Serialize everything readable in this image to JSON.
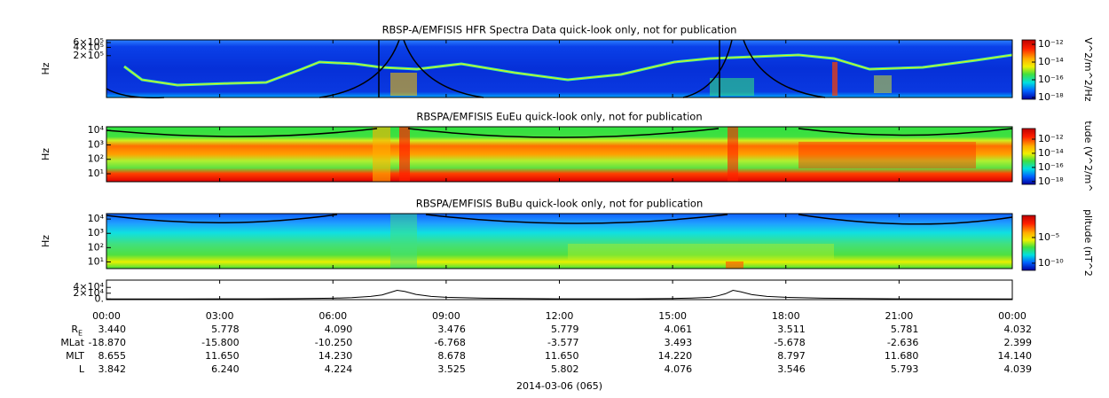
{
  "chart_data": [
    {
      "type": "spectrogram",
      "title": "RBSP-A/EMFISIS  HFR Spectra Data quick-look only, not for publication",
      "y_label": "Hz",
      "log_y": true,
      "ylim": [
        6000,
        750000
      ],
      "yticks": [
        {
          "value": 600000,
          "label": "6×10⁵"
        },
        {
          "value": 400000,
          "label": "4×10⁵"
        },
        {
          "value": 200000,
          "label": "2×10⁵"
        }
      ],
      "colorbar_label": "V^2/m^2/Hz",
      "clim": [
        6.3e-19,
        3.2e-12
      ],
      "colorbar_ticks": [
        {
          "value": 1e-12,
          "label": "10⁻¹²"
        },
        {
          "value": 1e-14,
          "label": "10⁻¹⁴"
        },
        {
          "value": 1e-16,
          "label": "10⁻¹⁶"
        },
        {
          "value": 1e-18,
          "label": "10⁻¹⁸"
        }
      ]
    },
    {
      "type": "spectrogram",
      "title": "RBSPA/EMFISIS  EuEu quick-look only, not for publication",
      "y_label": "Hz",
      "log_y": true,
      "ylim": [
        2.8,
        18000
      ],
      "yticks": [
        {
          "value": 10000,
          "label": "10⁴"
        },
        {
          "value": 1000,
          "label": "10³"
        },
        {
          "value": 100,
          "label": "10²"
        },
        {
          "value": 10,
          "label": "10¹"
        }
      ],
      "colorbar_label": "tude (V^2/m^",
      "clim": [
        4e-19,
        3.2e-11
      ],
      "colorbar_ticks": [
        {
          "value": 1e-12,
          "label": "10⁻¹²"
        },
        {
          "value": 1e-14,
          "label": "10⁻¹⁴"
        },
        {
          "value": 1e-16,
          "label": "10⁻¹⁶"
        },
        {
          "value": 1e-18,
          "label": "10⁻¹⁸"
        }
      ]
    },
    {
      "type": "spectrogram",
      "title": "RBSPA/EMFISIS  BuBu quick-look only, not for publication",
      "y_label": "Hz",
      "log_y": true,
      "ylim": [
        3.4,
        24000
      ],
      "yticks": [
        {
          "value": 10000,
          "label": "10⁴"
        },
        {
          "value": 1000,
          "label": "10³"
        },
        {
          "value": 100,
          "label": "10²"
        },
        {
          "value": 10,
          "label": "10¹"
        }
      ],
      "colorbar_label": "plitude (nT^2",
      "clim": [
        4e-12,
        0.2
      ],
      "colorbar_ticks": [
        {
          "value": 1e-05,
          "label": "10⁻⁵"
        },
        {
          "value": 1e-10,
          "label": "10⁻¹⁰"
        }
      ]
    },
    {
      "type": "line",
      "color": "#000000",
      "xlim": [
        0,
        24
      ],
      "xticks": [
        {
          "value": 0,
          "label": "00:00"
        },
        {
          "value": 3,
          "label": "03:00"
        },
        {
          "value": 6,
          "label": "06:00"
        },
        {
          "value": 9,
          "label": "09:00"
        },
        {
          "value": 12,
          "label": "12:00"
        },
        {
          "value": 15,
          "label": "15:00"
        },
        {
          "value": 18,
          "label": "18:00"
        },
        {
          "value": 21,
          "label": "21:00"
        },
        {
          "value": 24,
          "label": "00:00"
        }
      ],
      "ylim": [
        -2000,
        65000
      ],
      "yticks": [
        {
          "value": 0,
          "label": "0."
        },
        {
          "value": 20000,
          "label": "2×10⁴"
        },
        {
          "value": 40000,
          "label": "4×10⁴"
        }
      ],
      "x": [
        0,
        2,
        4,
        5,
        6,
        6.5,
        7,
        7.3,
        7.5,
        7.7,
        7.9,
        8.2,
        8.6,
        9,
        10,
        12,
        14,
        15,
        15.5,
        16,
        16.2,
        16.4,
        16.6,
        16.8,
        17.1,
        17.5,
        18,
        19,
        21,
        24
      ],
      "values": [
        100,
        200,
        600,
        1500,
        3000,
        5000,
        9000,
        14000,
        22000,
        30000,
        26000,
        16000,
        9000,
        6000,
        3000,
        600,
        800,
        2000,
        3500,
        6000,
        11000,
        18000,
        30000,
        25000,
        15000,
        9000,
        6000,
        3000,
        800,
        300
      ]
    }
  ],
  "ephemeris": {
    "rows": [
      {
        "label": "R",
        "sub": "E",
        "values": [
          "3.440",
          "5.778",
          "4.090",
          "3.476",
          "5.779",
          "4.061",
          "3.511",
          "5.781",
          "4.032"
        ]
      },
      {
        "label": "MLat",
        "values": [
          "-18.870",
          "-15.800",
          "-10.250",
          "-6.768",
          "-3.577",
          "3.493",
          "-5.678",
          "-2.636",
          "2.399"
        ]
      },
      {
        "label": "MLT",
        "values": [
          "8.655",
          "11.650",
          "14.230",
          "8.678",
          "11.650",
          "14.220",
          "8.797",
          "11.680",
          "14.140"
        ]
      },
      {
        "label": "L",
        "values": [
          "3.842",
          "6.240",
          "4.224",
          "3.525",
          "5.802",
          "4.076",
          "3.546",
          "5.793",
          "4.039"
        ]
      }
    ],
    "date": "2014-03-06 (065)"
  }
}
